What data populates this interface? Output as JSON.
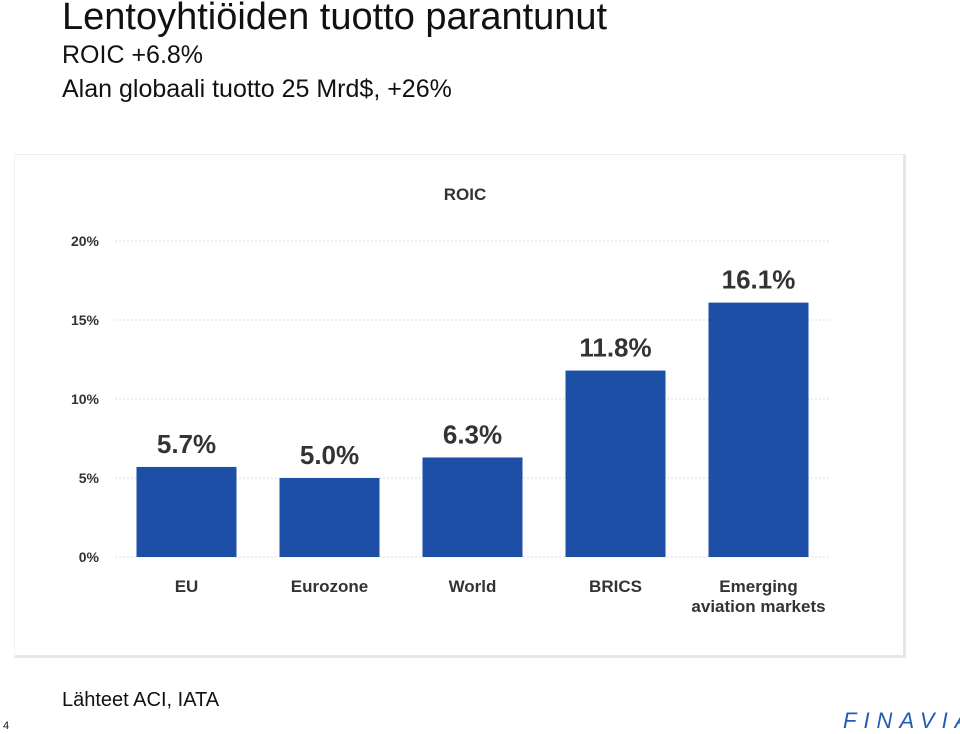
{
  "slide": {
    "title": "Lentoyhtiöiden  tuotto parantunut",
    "subtitle_1": "ROIC +6.8%",
    "subtitle_2": "Alan globaali tuotto 25 Mrd$, +26%",
    "source": "Lähteet ACI, IATA",
    "page_number": "4",
    "logo": "FINAVIA"
  },
  "colors": {
    "bar": "#1e4fa6",
    "grid": "#d9dde3",
    "text": "#333333",
    "logo": "#1f5eb4"
  },
  "chart_data": {
    "type": "bar",
    "title": "ROIC",
    "categories": [
      "EU",
      "Eurozone",
      "World",
      "BRICS",
      "Emerging aviation markets"
    ],
    "values": [
      5.7,
      5.0,
      6.3,
      11.8,
      16.1
    ],
    "value_labels": [
      "5.7%",
      "5.0%",
      "6.3%",
      "11.8%",
      "16.1%"
    ],
    "yticks": [
      0,
      5,
      10,
      15,
      20
    ],
    "ytick_labels": [
      "0%",
      "5%",
      "10%",
      "15%",
      "20%"
    ],
    "ylim": [
      0,
      20
    ],
    "xlabel": "",
    "ylabel": "",
    "grid": true,
    "legend": "none"
  }
}
